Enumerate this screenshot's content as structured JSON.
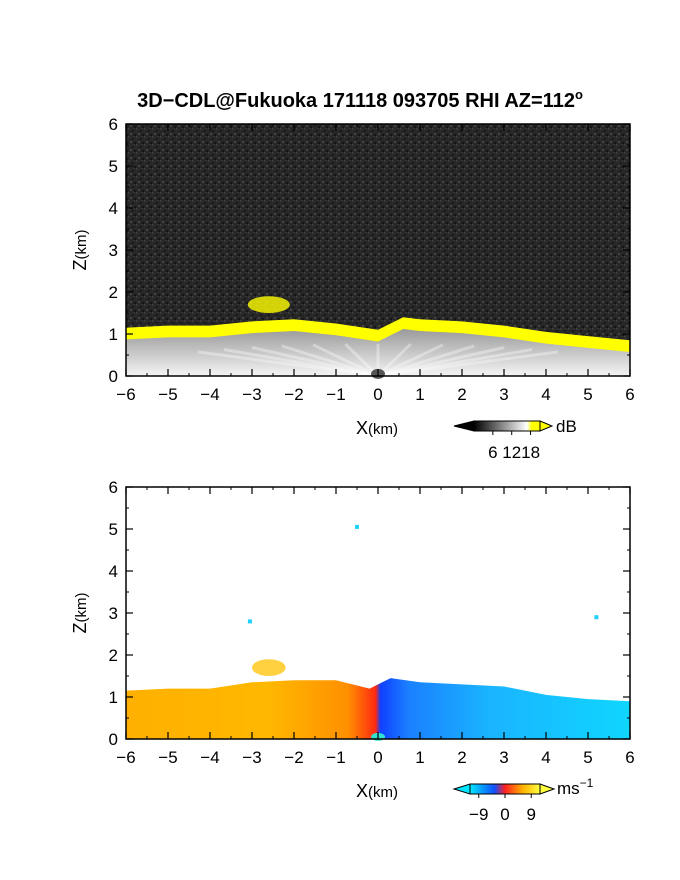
{
  "figure": {
    "title": "3D−CDL@Fukuoka 171118 093705 RHI AZ=112",
    "title_sup": "o"
  },
  "chart_data": [
    {
      "type": "heatmap",
      "panel": "top",
      "quantity": "backscatter SNR",
      "xlabel_main": "X",
      "xlabel_unit": "(km)",
      "ylabel_main": "Z",
      "ylabel_unit": "(km)",
      "xlim": [
        -6,
        6
      ],
      "ylim": [
        0,
        6
      ],
      "xticks": [
        -6,
        -5,
        -4,
        -3,
        -2,
        -1,
        0,
        1,
        2,
        3,
        4,
        5,
        6
      ],
      "yticks": [
        0,
        1,
        2,
        3,
        4,
        5,
        6
      ],
      "background_color": "#2b2b2b",
      "layer_top_km": [
        [
          -6,
          1.15
        ],
        [
          -5,
          1.2
        ],
        [
          -4,
          1.2
        ],
        [
          -3,
          1.3
        ],
        [
          -2,
          1.35
        ],
        [
          -1,
          1.25
        ],
        [
          0,
          1.1
        ],
        [
          0.6,
          1.4
        ],
        [
          1,
          1.35
        ],
        [
          2,
          1.3
        ],
        [
          3,
          1.2
        ],
        [
          4,
          1.05
        ],
        [
          5,
          0.95
        ],
        [
          6,
          0.85
        ]
      ],
      "elevated_plume": {
        "x_range": [
          -3.1,
          -2.1
        ],
        "z_range": [
          1.5,
          1.9
        ]
      },
      "colorbar": {
        "unit": "dB",
        "ticks": [
          6,
          12,
          18
        ],
        "range": [
          0,
          21
        ],
        "colors": [
          "#000000",
          "#ffffff",
          "#ffff00"
        ]
      }
    },
    {
      "type": "heatmap",
      "panel": "bottom",
      "quantity": "radial velocity",
      "xlabel_main": "X",
      "xlabel_unit": "(km)",
      "ylabel_main": "Z",
      "ylabel_unit": "(km)",
      "xlim": [
        -6,
        6
      ],
      "ylim": [
        0,
        6
      ],
      "xticks": [
        -6,
        -5,
        -4,
        -3,
        -2,
        -1,
        0,
        1,
        2,
        3,
        4,
        5,
        6
      ],
      "yticks": [
        0,
        1,
        2,
        3,
        4,
        5,
        6
      ],
      "layer_top_km": [
        [
          -6,
          1.15
        ],
        [
          -5,
          1.2
        ],
        [
          -4,
          1.2
        ],
        [
          -3,
          1.35
        ],
        [
          -2,
          1.4
        ],
        [
          -1,
          1.4
        ],
        [
          -0.2,
          1.2
        ],
        [
          0.3,
          1.45
        ],
        [
          1,
          1.35
        ],
        [
          2,
          1.3
        ],
        [
          3,
          1.25
        ],
        [
          4,
          1.05
        ],
        [
          5,
          0.95
        ],
        [
          6,
          0.9
        ]
      ],
      "elevated_plume": {
        "x_range": [
          -3.0,
          -2.2
        ],
        "z_range": [
          1.5,
          1.9
        ]
      },
      "isolated_points": [
        [
          -0.5,
          5.05
        ],
        [
          -3.05,
          2.8
        ],
        [
          5.2,
          2.9
        ]
      ],
      "colorbar": {
        "unit_main": "ms",
        "unit_sup": "−1",
        "tick_labels": [
          "−9",
          "0",
          "9"
        ],
        "ticks": [
          -9,
          0,
          9
        ],
        "range": [
          -12,
          12
        ],
        "colors": [
          "#00e5ff",
          "#1050ff",
          "#ff2020",
          "#ffb000",
          "#ffff40"
        ]
      }
    }
  ]
}
